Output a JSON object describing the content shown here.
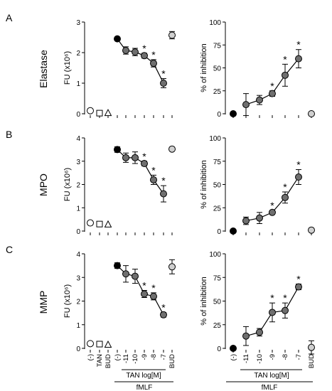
{
  "panel_letters": [
    "A",
    "B",
    "C"
  ],
  "row_labels": [
    "Elastase",
    "MPO",
    "MMP"
  ],
  "left_ylabel": "FU (x10⁶)",
  "right_ylabel": "% of inhibition",
  "x_axis": {
    "left_ticks": [
      "(-)",
      "TAN",
      "BUD",
      "(-)",
      "-11",
      "-10",
      "-9",
      "-8",
      "-7",
      "BUD"
    ],
    "right_ticks": [
      "(-)",
      "-11",
      "-10",
      "-9",
      "-8",
      "-7",
      "BUD"
    ],
    "group_label": "TAN log[M]",
    "stim_label": "fMLF"
  },
  "colors": {
    "black_marker": "#000000",
    "dark_gray_marker": "#6f6f6f",
    "light_gray_marker": "#cfcfcf",
    "open_marker": "#ffffff"
  },
  "chart_data": [
    {
      "type": "scatter",
      "row": "Elastase",
      "panel": "A-left",
      "ylabel": "FU (x10⁶)",
      "ylim": [
        0,
        3
      ],
      "yticks": [
        0,
        1,
        2,
        3
      ],
      "categories": [
        "(-)",
        "TAN",
        "BUD",
        "fMLF (-)",
        "-11",
        "-10",
        "-9",
        "-8",
        "-7",
        "BUD"
      ],
      "values": [
        0.1,
        0.02,
        0.02,
        2.45,
        2.07,
        2.02,
        1.9,
        1.65,
        1.0,
        2.57
      ],
      "errors": [
        0,
        0,
        0,
        0,
        0.12,
        0.12,
        0.08,
        0.12,
        0.15,
        0.12
      ],
      "markers": [
        "circle-open",
        "square-open",
        "triangle-open",
        "circle-black",
        "circle-gray",
        "circle-gray",
        "circle-gray",
        "circle-gray",
        "circle-gray",
        "circle-light"
      ],
      "significant": [
        false,
        false,
        false,
        false,
        false,
        false,
        true,
        true,
        true,
        false
      ],
      "line_from": 3,
      "line_to": 8
    },
    {
      "type": "scatter",
      "row": "Elastase",
      "panel": "A-right",
      "ylabel": "% of inhibition",
      "ylim": [
        0,
        100
      ],
      "yticks": [
        0,
        25,
        50,
        75,
        100
      ],
      "categories": [
        "fMLF (-)",
        "-11",
        "-10",
        "-9",
        "-8",
        "-7",
        "BUD"
      ],
      "values": [
        0,
        10,
        15,
        22,
        42,
        60,
        0
      ],
      "errors": [
        0,
        12,
        5,
        3,
        12,
        10,
        0
      ],
      "markers": [
        "circle-black",
        "circle-gray",
        "circle-gray",
        "circle-gray",
        "circle-gray",
        "circle-gray",
        "circle-light"
      ],
      "significant": [
        false,
        false,
        false,
        true,
        true,
        true,
        false
      ],
      "line_from": 1,
      "line_to": 5
    },
    {
      "type": "scatter",
      "row": "MPO",
      "panel": "B-left",
      "ylabel": "FU (x10⁶)",
      "ylim": [
        0,
        4
      ],
      "yticks": [
        0,
        1,
        2,
        3,
        4
      ],
      "categories": [
        "(-)",
        "TAN",
        "BUD",
        "fMLF (-)",
        "-11",
        "-10",
        "-9",
        "-8",
        "-7",
        "BUD"
      ],
      "values": [
        0.35,
        0.3,
        0.28,
        3.5,
        3.15,
        3.15,
        2.9,
        2.2,
        1.6,
        3.52
      ],
      "errors": [
        0,
        0,
        0,
        0.12,
        0.2,
        0.25,
        0.1,
        0.2,
        0.35,
        0.05
      ],
      "markers": [
        "circle-open",
        "square-open",
        "triangle-open",
        "circle-black",
        "circle-gray",
        "circle-gray",
        "circle-gray",
        "circle-gray",
        "circle-gray",
        "circle-light"
      ],
      "significant": [
        false,
        false,
        false,
        false,
        false,
        false,
        true,
        true,
        true,
        false
      ],
      "line_from": 3,
      "line_to": 8
    },
    {
      "type": "scatter",
      "row": "MPO",
      "panel": "B-right",
      "ylabel": "% of inhibition",
      "ylim": [
        0,
        100
      ],
      "yticks": [
        0,
        25,
        50,
        75,
        100
      ],
      "categories": [
        "fMLF (-)",
        "-11",
        "-10",
        "-9",
        "-8",
        "-7",
        "BUD"
      ],
      "values": [
        0,
        11,
        14,
        20,
        36,
        58,
        1
      ],
      "errors": [
        0,
        4,
        6,
        2,
        6,
        8,
        0
      ],
      "markers": [
        "circle-black",
        "circle-gray",
        "circle-gray",
        "circle-gray",
        "circle-gray",
        "circle-gray",
        "circle-light"
      ],
      "significant": [
        false,
        false,
        false,
        true,
        true,
        true,
        false
      ],
      "line_from": 1,
      "line_to": 5
    },
    {
      "type": "scatter",
      "row": "MMP",
      "panel": "C-left",
      "ylabel": "FU (x10⁶)",
      "ylim": [
        0,
        4
      ],
      "yticks": [
        0,
        1,
        2,
        3,
        4
      ],
      "categories": [
        "(-)",
        "TAN",
        "BUD",
        "fMLF (-)",
        "-11",
        "-10",
        "-9",
        "-8",
        "-7",
        "BUD"
      ],
      "values": [
        0.2,
        0.18,
        0.15,
        3.5,
        3.15,
        3.05,
        2.3,
        2.2,
        1.42,
        3.45
      ],
      "errors": [
        0,
        0,
        0,
        0.12,
        0.35,
        0.3,
        0.15,
        0.15,
        0.1,
        0.3
      ],
      "markers": [
        "circle-open",
        "square-open",
        "triangle-open",
        "circle-black",
        "circle-gray",
        "circle-gray",
        "circle-gray",
        "circle-gray",
        "circle-gray",
        "circle-light"
      ],
      "significant": [
        false,
        false,
        false,
        false,
        false,
        false,
        true,
        true,
        true,
        false
      ],
      "line_from": 3,
      "line_to": 8
    },
    {
      "type": "scatter",
      "row": "MMP",
      "panel": "C-right",
      "ylabel": "% of inhibition",
      "ylim": [
        0,
        100
      ],
      "yticks": [
        0,
        25,
        50,
        75,
        100
      ],
      "categories": [
        "fMLF (-)",
        "-11",
        "-10",
        "-9",
        "-8",
        "-7",
        "BUD"
      ],
      "values": [
        0,
        13,
        17,
        38,
        40,
        65,
        1
      ],
      "errors": [
        0,
        10,
        4,
        10,
        8,
        3,
        7
      ],
      "markers": [
        "circle-black",
        "circle-gray",
        "circle-gray",
        "circle-gray",
        "circle-gray",
        "circle-gray",
        "circle-light"
      ],
      "significant": [
        false,
        false,
        false,
        true,
        true,
        true,
        false
      ],
      "line_from": 1,
      "line_to": 5
    }
  ]
}
